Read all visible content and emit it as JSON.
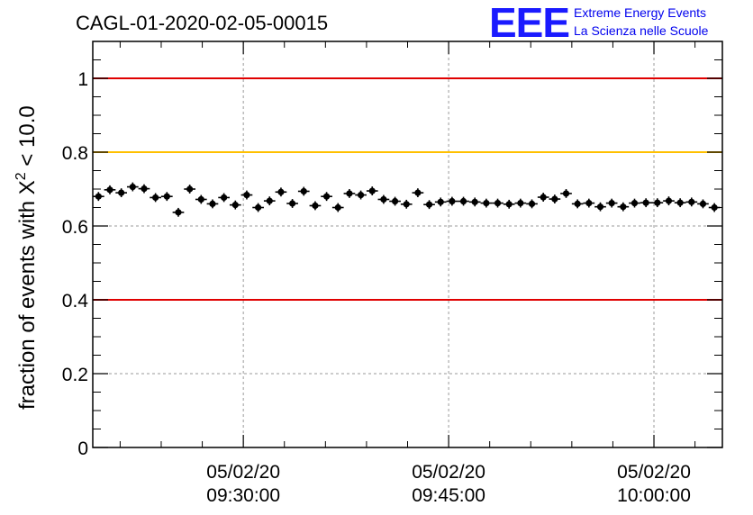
{
  "chart_data": {
    "type": "scatter",
    "title": "CAGL-01-2020-02-05-00015",
    "ylabel_main": "fraction of events with X",
    "ylabel_sup": "2",
    "ylabel_tail": " < 10.0",
    "ylim": [
      0,
      1.1
    ],
    "yticks": [
      0,
      0.2,
      0.4,
      0.6,
      0.8,
      1
    ],
    "ytick_labels": [
      "0",
      "0.2",
      "0.4",
      "0.6",
      "0.8",
      "1"
    ],
    "xlim": [
      "09:19:00",
      "10:05:00"
    ],
    "xticks": [
      {
        "time": "09:30:00",
        "date": "05/02/20",
        "clock": "09:30:00"
      },
      {
        "time": "09:45:00",
        "date": "05/02/20",
        "clock": "09:45:00"
      },
      {
        "time": "10:00:00",
        "date": "05/02/20",
        "clock": "10:00:00"
      }
    ],
    "grid": true,
    "reference_lines": [
      {
        "y": 1.0,
        "color": "#e00000"
      },
      {
        "y": 0.8,
        "color": "#ffc000"
      },
      {
        "y": 0.4,
        "color": "#e00000"
      }
    ],
    "marker_color": "#000000",
    "bin_minutes": 0.835,
    "x": [
      "09:19:25",
      "09:20:15",
      "09:21:05",
      "09:21:55",
      "09:22:45",
      "09:23:35",
      "09:24:25",
      "09:25:15",
      "09:26:05",
      "09:26:55",
      "09:27:45",
      "09:28:35",
      "09:29:25",
      "09:30:15",
      "09:31:05",
      "09:31:55",
      "09:32:45",
      "09:33:35",
      "09:34:25",
      "09:35:15",
      "09:36:05",
      "09:36:55",
      "09:37:45",
      "09:38:35",
      "09:39:25",
      "09:40:15",
      "09:41:05",
      "09:41:55",
      "09:42:45",
      "09:43:35",
      "09:44:25",
      "09:45:15",
      "09:46:05",
      "09:46:55",
      "09:47:45",
      "09:48:35",
      "09:49:25",
      "09:50:15",
      "09:51:05",
      "09:51:55",
      "09:52:45",
      "09:53:35",
      "09:54:25",
      "09:55:15",
      "09:56:05",
      "09:56:55",
      "09:57:45",
      "09:58:35",
      "09:59:25",
      "10:00:15",
      "10:01:05",
      "10:01:55",
      "10:02:45",
      "10:03:35",
      "10:04:25"
    ],
    "y": [
      0.68,
      0.698,
      0.69,
      0.706,
      0.701,
      0.677,
      0.68,
      0.637,
      0.7,
      0.672,
      0.66,
      0.677,
      0.657,
      0.684,
      0.65,
      0.668,
      0.692,
      0.661,
      0.694,
      0.655,
      0.68,
      0.65,
      0.688,
      0.684,
      0.695,
      0.672,
      0.667,
      0.659,
      0.69,
      0.658,
      0.665,
      0.667,
      0.667,
      0.665,
      0.662,
      0.662,
      0.659,
      0.662,
      0.66,
      0.678,
      0.673,
      0.688,
      0.66,
      0.662,
      0.652,
      0.662,
      0.652,
      0.662,
      0.663,
      0.663,
      0.668,
      0.663,
      0.665,
      0.66,
      0.65
    ],
    "yerr": 0.012
  },
  "logo": {
    "letters": "EEE",
    "line1": "Extreme Energy Events",
    "line2": "La Scienza nelle Scuole"
  }
}
